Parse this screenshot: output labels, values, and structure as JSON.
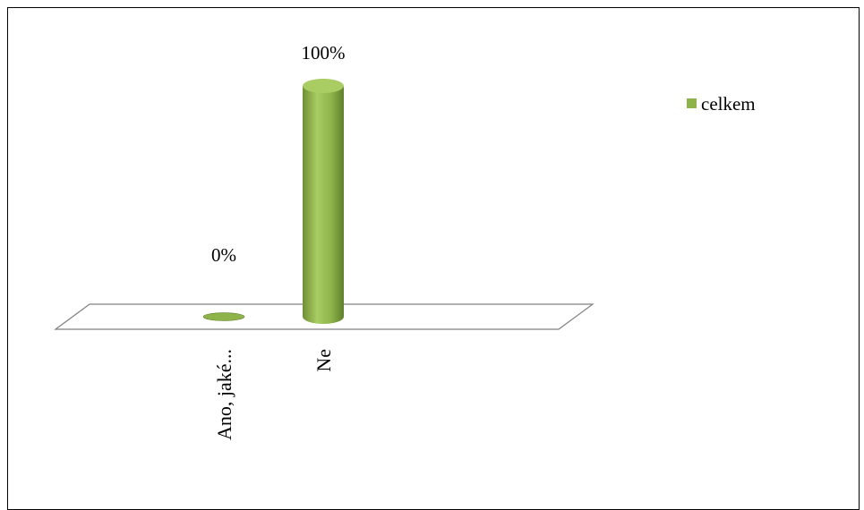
{
  "chart_data": {
    "type": "bar",
    "style": "3d-cylinder",
    "categories": [
      "Ano, jaké...",
      "Ne"
    ],
    "series": [
      {
        "name": "celkem",
        "values": [
          0,
          100
        ],
        "data_labels": [
          "0%",
          "100%"
        ],
        "color": "#8db34a"
      }
    ],
    "ylim": [
      0,
      100
    ],
    "unit": "%",
    "grid": false,
    "legend_position": "top-right"
  },
  "colors": {
    "bar_light": "#a9cc63",
    "bar_mid": "#8db34a",
    "bar_dark": "#5f7f2a",
    "floor_stroke": "#808080"
  }
}
